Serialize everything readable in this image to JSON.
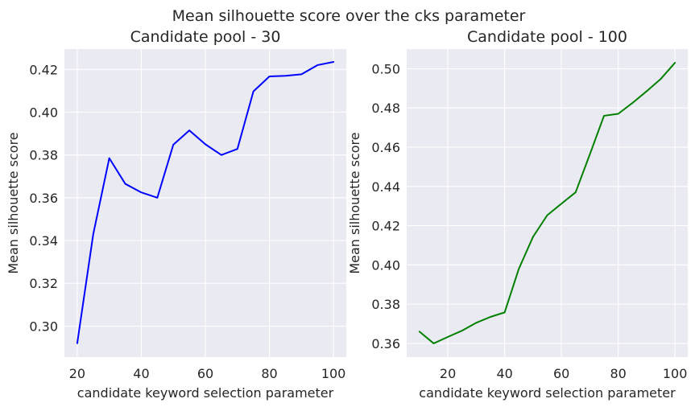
{
  "figure": {
    "suptitle": "Mean silhouette score over the cks parameter"
  },
  "chart_data": [
    {
      "type": "line",
      "title": "Candidate pool - 30",
      "xlabel": "candidate keyword selection parameter",
      "ylabel": "Mean silhouette score",
      "xlim": [
        16,
        104
      ],
      "ylim": [
        0.2855,
        0.4295
      ],
      "xticks": [
        20,
        40,
        60,
        80,
        100
      ],
      "xtick_labels": [
        "20",
        "40",
        "60",
        "80",
        "100"
      ],
      "yticks": [
        0.3,
        0.32,
        0.34,
        0.36,
        0.38,
        0.4,
        0.42
      ],
      "ytick_labels": [
        "0.30",
        "0.32",
        "0.34",
        "0.36",
        "0.38",
        "0.40",
        "0.42"
      ],
      "grid": true,
      "color": "#0000ff",
      "x": [
        20,
        25,
        30,
        35,
        40,
        45,
        50,
        55,
        60,
        65,
        70,
        75,
        80,
        85,
        90,
        95,
        100
      ],
      "y": [
        0.292,
        0.343,
        0.3785,
        0.3665,
        0.3625,
        0.36,
        0.3848,
        0.3915,
        0.385,
        0.38,
        0.3828,
        0.4097,
        0.4167,
        0.417,
        0.4177,
        0.422,
        0.4235
      ]
    },
    {
      "type": "line",
      "title": "Candidate pool - 100",
      "xlabel": "candidate keyword selection parameter",
      "ylabel": "Mean silhouette score",
      "xlim": [
        5.5,
        104.5
      ],
      "ylim": [
        0.353,
        0.51
      ],
      "xticks": [
        20,
        40,
        60,
        80,
        100
      ],
      "xtick_labels": [
        "20",
        "40",
        "60",
        "80",
        "100"
      ],
      "yticks": [
        0.36,
        0.38,
        0.4,
        0.42,
        0.44,
        0.46,
        0.48,
        0.5
      ],
      "ytick_labels": [
        "0.36",
        "0.38",
        "0.40",
        "0.42",
        "0.44",
        "0.46",
        "0.48",
        "0.50"
      ],
      "grid": true,
      "color": "#008000",
      "x": [
        10,
        15,
        20,
        25,
        30,
        35,
        40,
        45,
        50,
        55,
        60,
        65,
        70,
        75,
        80,
        85,
        90,
        95,
        100
      ],
      "y": [
        0.366,
        0.36,
        0.3633,
        0.3665,
        0.3705,
        0.3735,
        0.3758,
        0.398,
        0.4143,
        0.4253,
        0.4312,
        0.437,
        0.4563,
        0.476,
        0.477,
        0.4825,
        0.4885,
        0.4948,
        0.503
      ]
    }
  ]
}
